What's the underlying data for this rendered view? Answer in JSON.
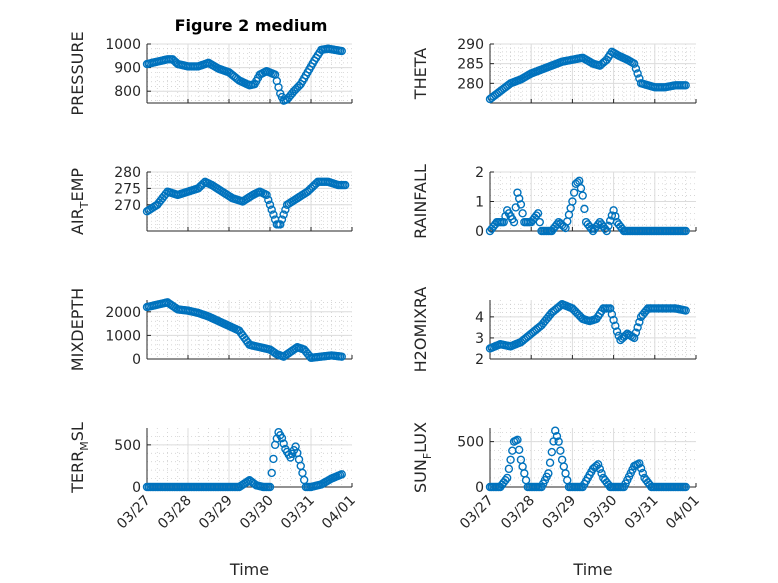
{
  "figure_title": "Figure 2 medium",
  "colors": {
    "marker": "#0072BD",
    "axis": "#262626",
    "grid": "#dcdcdc"
  },
  "chart_data": [
    {
      "type": "scatter",
      "ylabel": "PRESSURE",
      "ylim": [
        750,
        1000
      ],
      "yticks": [
        "800",
        "900",
        "1000"
      ],
      "ytick_values": [
        800,
        900,
        1000
      ],
      "xlim": [
        "03/27",
        "04/01"
      ],
      "x_tick_labels": [],
      "series": [
        {
          "marker": "circle",
          "points": [
            [
              "03/27 00:00",
              915
            ],
            [
              "03/27 06:00",
              925
            ],
            [
              "03/27 12:00",
              935
            ],
            [
              "03/27 15:00",
              935
            ],
            [
              "03/27 18:00",
              915
            ],
            [
              "03/28 00:00",
              905
            ],
            [
              "03/28 06:00",
              905
            ],
            [
              "03/28 12:00",
              920
            ],
            [
              "03/28 18:00",
              895
            ],
            [
              "03/29 00:00",
              880
            ],
            [
              "03/29 06:00",
              845
            ],
            [
              "03/29 12:00",
              825
            ],
            [
              "03/29 15:00",
              830
            ],
            [
              "03/29 18:00",
              870
            ],
            [
              "03/29 22:00",
              885
            ],
            [
              "03/30 03:00",
              870
            ],
            [
              "03/30 06:00",
              790
            ],
            [
              "03/30 08:00",
              760
            ],
            [
              "03/30 10:00",
              765
            ],
            [
              "03/30 14:00",
              800
            ],
            [
              "03/30 18:00",
              830
            ],
            [
              "03/30 22:00",
              880
            ],
            [
              "03/31 02:00",
              930
            ],
            [
              "03/31 06:00",
              975
            ],
            [
              "03/31 10:00",
              980
            ],
            [
              "03/31 14:00",
              975
            ],
            [
              "03/31 18:00",
              970
            ]
          ]
        }
      ]
    },
    {
      "type": "scatter",
      "ylabel": "THETA",
      "ylim": [
        275,
        290
      ],
      "yticks": [
        "280",
        "285",
        "290"
      ],
      "ytick_values": [
        280,
        285,
        290
      ],
      "xlim": [
        "03/27",
        "04/01"
      ],
      "x_tick_labels": [],
      "series": [
        {
          "marker": "circle",
          "points": [
            [
              "03/27 00:00",
              276
            ],
            [
              "03/27 06:00",
              278
            ],
            [
              "03/27 12:00",
              280
            ],
            [
              "03/27 18:00",
              281
            ],
            [
              "03/28 00:00",
              282.5
            ],
            [
              "03/28 06:00",
              283.5
            ],
            [
              "03/28 12:00",
              284.5
            ],
            [
              "03/28 18:00",
              285.5
            ],
            [
              "03/29 00:00",
              286
            ],
            [
              "03/29 06:00",
              286.5
            ],
            [
              "03/29 12:00",
              285
            ],
            [
              "03/29 16:00",
              284.5
            ],
            [
              "03/29 20:00",
              286
            ],
            [
              "03/29 23:00",
              288
            ],
            [
              "03/30 03:00",
              287
            ],
            [
              "03/30 08:00",
              286
            ],
            [
              "03/30 12:00",
              285
            ],
            [
              "03/30 16:00",
              280
            ],
            [
              "03/30 20:00",
              279.5
            ],
            [
              "03/31 00:00",
              279
            ],
            [
              "03/31 06:00",
              279
            ],
            [
              "03/31 12:00",
              279.5
            ],
            [
              "03/31 18:00",
              279.5
            ]
          ]
        }
      ]
    },
    {
      "type": "scatter",
      "ylabel": "AIR_TEMP",
      "ylim": [
        262,
        280
      ],
      "yticks": [
        "270",
        "275",
        "280"
      ],
      "ytick_values": [
        270,
        275,
        280
      ],
      "xlim": [
        "03/27",
        "04/01"
      ],
      "x_tick_labels": [],
      "series": [
        {
          "marker": "circle",
          "points": [
            [
              "03/27 00:00",
              268
            ],
            [
              "03/27 06:00",
              270
            ],
            [
              "03/27 12:00",
              274
            ],
            [
              "03/27 18:00",
              273
            ],
            [
              "03/28 00:00",
              274
            ],
            [
              "03/28 06:00",
              275
            ],
            [
              "03/28 10:00",
              277
            ],
            [
              "03/28 14:00",
              276
            ],
            [
              "03/28 20:00",
              274
            ],
            [
              "03/29 02:00",
              272
            ],
            [
              "03/29 08:00",
              271
            ],
            [
              "03/29 14:00",
              273
            ],
            [
              "03/29 18:00",
              274
            ],
            [
              "03/29 22:00",
              273
            ],
            [
              "03/30 02:00",
              267
            ],
            [
              "03/30 04:00",
              264
            ],
            [
              "03/30 06:00",
              264
            ],
            [
              "03/30 10:00",
              270
            ],
            [
              "03/30 16:00",
              272
            ],
            [
              "03/30 22:00",
              274
            ],
            [
              "03/31 04:00",
              277
            ],
            [
              "03/31 10:00",
              277
            ],
            [
              "03/31 16:00",
              276
            ],
            [
              "03/31 20:00",
              276
            ]
          ]
        }
      ]
    },
    {
      "type": "scatter",
      "ylabel": "RAINFALL",
      "ylim": [
        0,
        2
      ],
      "yticks": [
        "0",
        "1",
        "2"
      ],
      "ytick_values": [
        0,
        1,
        2
      ],
      "xlim": [
        "03/27",
        "04/01"
      ],
      "x_tick_labels": [],
      "series": [
        {
          "marker": "circle",
          "points": [
            [
              "03/27 00:00",
              0
            ],
            [
              "03/27 04:00",
              0.3
            ],
            [
              "03/27 08:00",
              0.3
            ],
            [
              "03/27 10:00",
              0.7
            ],
            [
              "03/27 14:00",
              0.3
            ],
            [
              "03/27 16:00",
              1.3
            ],
            [
              "03/27 18:00",
              0.9
            ],
            [
              "03/27 20:00",
              0.3
            ],
            [
              "03/28 00:00",
              0.3
            ],
            [
              "03/28 04:00",
              0.6
            ],
            [
              "03/28 06:00",
              0
            ],
            [
              "03/28 12:00",
              0
            ],
            [
              "03/28 16:00",
              0.3
            ],
            [
              "03/28 20:00",
              0.1
            ],
            [
              "03/29 00:00",
              1.0
            ],
            [
              "03/29 02:00",
              1.6
            ],
            [
              "03/29 04:00",
              1.7
            ],
            [
              "03/29 06:00",
              1.2
            ],
            [
              "03/29 08:00",
              0.3
            ],
            [
              "03/29 12:00",
              0
            ],
            [
              "03/29 16:00",
              0.3
            ],
            [
              "03/29 20:00",
              0
            ],
            [
              "03/30 00:00",
              0.7
            ],
            [
              "03/30 02:00",
              0.3
            ],
            [
              "03/30 06:00",
              0
            ],
            [
              "03/30 12:00",
              0
            ],
            [
              "03/30 18:00",
              0
            ],
            [
              "03/31 00:00",
              0
            ],
            [
              "03/31 06:00",
              0
            ],
            [
              "03/31 12:00",
              0
            ],
            [
              "03/31 18:00",
              0
            ]
          ]
        }
      ]
    },
    {
      "type": "scatter",
      "ylabel": "MIXDEPTH",
      "ylim": [
        0,
        2500
      ],
      "yticks": [
        "0",
        "1000",
        "2000"
      ],
      "ytick_values": [
        0,
        1000,
        2000
      ],
      "xlim": [
        "03/27",
        "04/01"
      ],
      "x_tick_labels": [],
      "series": [
        {
          "marker": "circle",
          "points": [
            [
              "03/27 00:00",
              2200
            ],
            [
              "03/27 06:00",
              2300
            ],
            [
              "03/27 12:00",
              2400
            ],
            [
              "03/27 18:00",
              2100
            ],
            [
              "03/28 00:00",
              2050
            ],
            [
              "03/28 06:00",
              1950
            ],
            [
              "03/28 12:00",
              1800
            ],
            [
              "03/28 18:00",
              1600
            ],
            [
              "03/29 00:00",
              1400
            ],
            [
              "03/29 06:00",
              1200
            ],
            [
              "03/29 12:00",
              600
            ],
            [
              "03/29 18:00",
              500
            ],
            [
              "03/30 00:00",
              400
            ],
            [
              "03/30 04:00",
              200
            ],
            [
              "03/30 08:00",
              100
            ],
            [
              "03/30 12:00",
              300
            ],
            [
              "03/30 16:00",
              500
            ],
            [
              "03/30 20:00",
              400
            ],
            [
              "03/31 00:00",
              50
            ],
            [
              "03/31 06:00",
              100
            ],
            [
              "03/31 12:00",
              150
            ],
            [
              "03/31 18:00",
              100
            ]
          ]
        }
      ]
    },
    {
      "type": "scatter",
      "ylabel": "H2OMIXRA",
      "ylim": [
        2,
        4.8
      ],
      "yticks": [
        "2",
        "3",
        "4"
      ],
      "ytick_values": [
        2,
        3,
        4
      ],
      "xlim": [
        "03/27",
        "04/01"
      ],
      "x_tick_labels": [],
      "series": [
        {
          "marker": "circle",
          "points": [
            [
              "03/27 00:00",
              2.5
            ],
            [
              "03/27 06:00",
              2.7
            ],
            [
              "03/27 12:00",
              2.6
            ],
            [
              "03/27 18:00",
              2.8
            ],
            [
              "03/28 00:00",
              3.2
            ],
            [
              "03/28 06:00",
              3.6
            ],
            [
              "03/28 12:00",
              4.2
            ],
            [
              "03/28 18:00",
              4.6
            ],
            [
              "03/29 00:00",
              4.4
            ],
            [
              "03/29 06:00",
              3.9
            ],
            [
              "03/29 10:00",
              3.8
            ],
            [
              "03/29 14:00",
              3.9
            ],
            [
              "03/29 18:00",
              4.4
            ],
            [
              "03/29 22:00",
              4.4
            ],
            [
              "03/30 02:00",
              3.3
            ],
            [
              "03/30 04:00",
              2.9
            ],
            [
              "03/30 08:00",
              3.2
            ],
            [
              "03/30 12:00",
              3.0
            ],
            [
              "03/30 16:00",
              4.0
            ],
            [
              "03/30 20:00",
              4.4
            ],
            [
              "03/31 00:00",
              4.4
            ],
            [
              "03/31 06:00",
              4.4
            ],
            [
              "03/31 12:00",
              4.4
            ],
            [
              "03/31 18:00",
              4.3
            ]
          ]
        }
      ]
    },
    {
      "type": "scatter",
      "ylabel": "TERR_MSL",
      "ylim": [
        0,
        700
      ],
      "yticks": [
        "0",
        "500"
      ],
      "ytick_values": [
        0,
        500
      ],
      "xlim": [
        "03/27",
        "04/01"
      ],
      "x_tick_labels": [
        "03/27",
        "03/28",
        "03/29",
        "03/30",
        "03/31",
        "04/01"
      ],
      "xlabel": "Time",
      "series": [
        {
          "marker": "circle",
          "points": [
            [
              "03/27 00:00",
              0
            ],
            [
              "03/27 12:00",
              0
            ],
            [
              "03/28 00:00",
              0
            ],
            [
              "03/28 12:00",
              0
            ],
            [
              "03/29 00:00",
              0
            ],
            [
              "03/29 06:00",
              0
            ],
            [
              "03/29 12:00",
              80
            ],
            [
              "03/29 16:00",
              20
            ],
            [
              "03/29 20:00",
              0
            ],
            [
              "03/30 00:00",
              0
            ],
            [
              "03/30 03:00",
              500
            ],
            [
              "03/30 05:00",
              650
            ],
            [
              "03/30 07:00",
              580
            ],
            [
              "03/30 09:00",
              450
            ],
            [
              "03/30 12:00",
              350
            ],
            [
              "03/30 15:00",
              480
            ],
            [
              "03/30 18:00",
              250
            ],
            [
              "03/30 21:00",
              0
            ],
            [
              "03/31 00:00",
              0
            ],
            [
              "03/31 06:00",
              30
            ],
            [
              "03/31 12:00",
              100
            ],
            [
              "03/31 18:00",
              150
            ]
          ]
        }
      ]
    },
    {
      "type": "scatter",
      "ylabel": "SUN_FLUX",
      "ylim": [
        0,
        650
      ],
      "yticks": [
        "0",
        "500"
      ],
      "ytick_values": [
        0,
        500
      ],
      "xlim": [
        "03/27",
        "04/01"
      ],
      "x_tick_labels": [
        "03/27",
        "03/28",
        "03/29",
        "03/30",
        "03/31",
        "04/01"
      ],
      "xlabel": "Time",
      "series": [
        {
          "marker": "circle",
          "points": [
            [
              "03/27 00:00",
              0
            ],
            [
              "03/27 06:00",
              0
            ],
            [
              "03/27 10:00",
              100
            ],
            [
              "03/27 14:00",
              500
            ],
            [
              "03/27 16:00",
              520
            ],
            [
              "03/27 18:00",
              300
            ],
            [
              "03/27 22:00",
              0
            ],
            [
              "03/28 06:00",
              0
            ],
            [
              "03/28 10:00",
              150
            ],
            [
              "03/28 14:00",
              620
            ],
            [
              "03/28 16:00",
              500
            ],
            [
              "03/28 18:00",
              300
            ],
            [
              "03/28 22:00",
              0
            ],
            [
              "03/29 06:00",
              0
            ],
            [
              "03/29 12:00",
              200
            ],
            [
              "03/29 15:00",
              250
            ],
            [
              "03/29 18:00",
              100
            ],
            [
              "03/29 22:00",
              0
            ],
            [
              "03/30 06:00",
              0
            ],
            [
              "03/30 12:00",
              230
            ],
            [
              "03/30 15:00",
              260
            ],
            [
              "03/30 18:00",
              100
            ],
            [
              "03/30 22:00",
              0
            ],
            [
              "03/31 06:00",
              0
            ],
            [
              "03/31 12:00",
              0
            ],
            [
              "03/31 18:00",
              0
            ]
          ]
        }
      ]
    }
  ]
}
